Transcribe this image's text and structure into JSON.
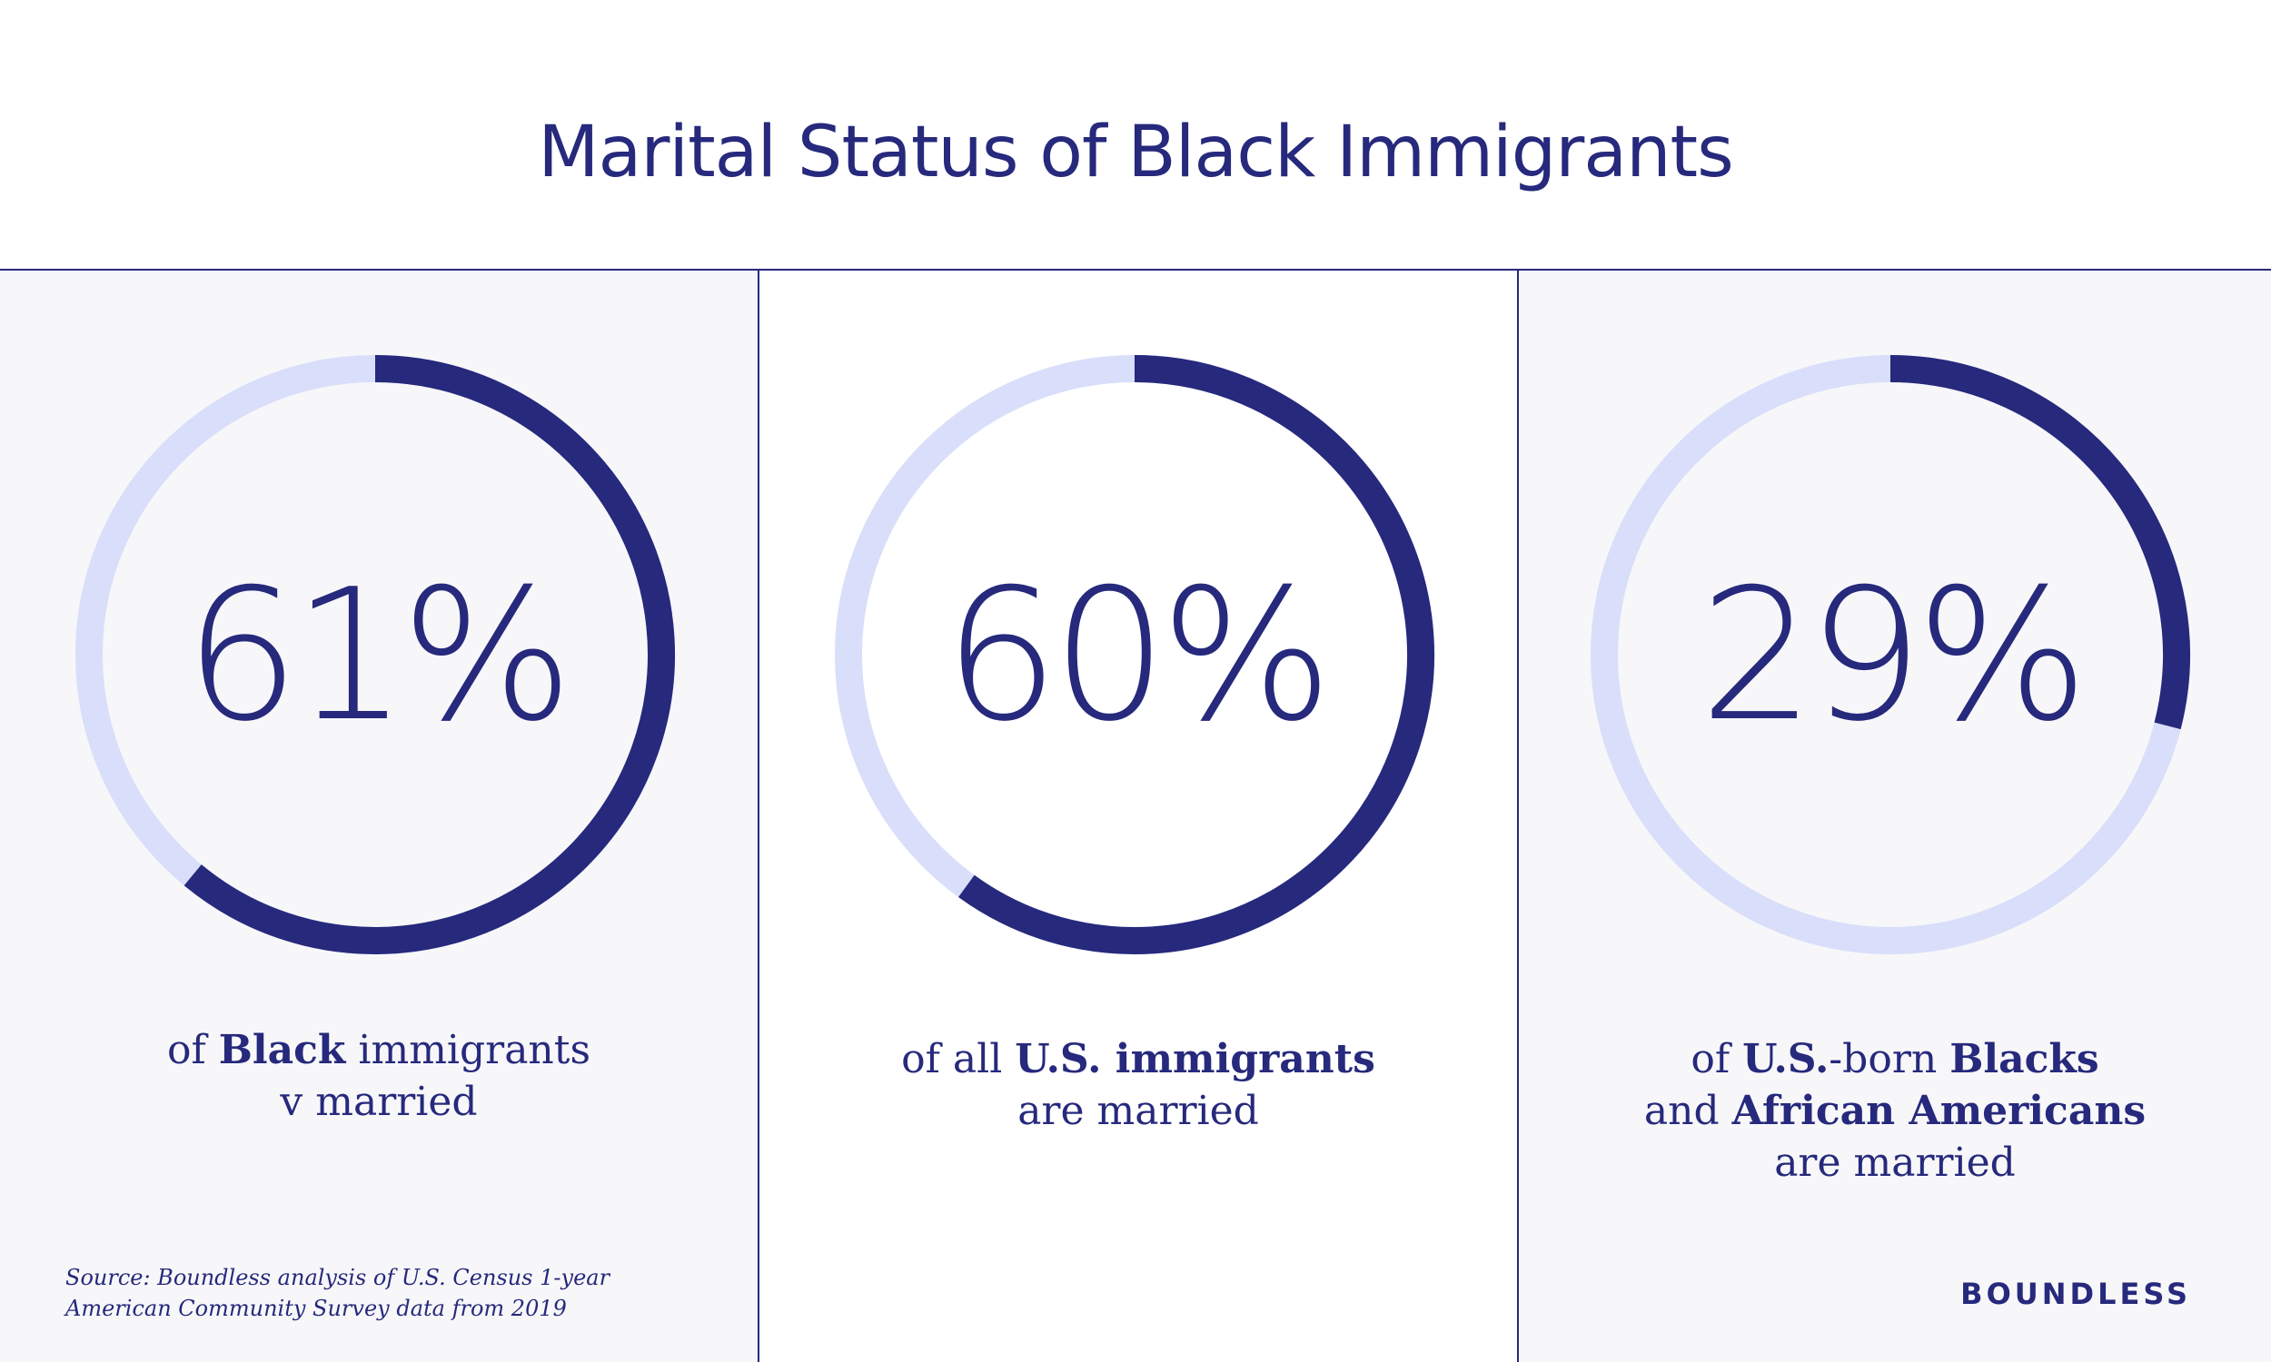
{
  "colors": {
    "accent": "#26297c",
    "track": "#d9defa",
    "panel_bg": "#f7f7f9",
    "white": "#ffffff"
  },
  "header": {
    "title": "Marital Status of Black Immigrants"
  },
  "chart_data": [
    {
      "type": "pie",
      "subtype": "donut",
      "value": 61,
      "value_label": "61%",
      "caption_parts": [
        {
          "text": "of ",
          "bold": false
        },
        {
          "text": "Black",
          "bold": true
        },
        {
          "text": " immigrants",
          "bold": false
        },
        {
          "text": "\nv married",
          "bold": false
        }
      ]
    },
    {
      "type": "pie",
      "subtype": "donut",
      "value": 60,
      "value_label": "60%",
      "caption_parts": [
        {
          "text": "of all ",
          "bold": false
        },
        {
          "text": "U.S. immigrants",
          "bold": true
        },
        {
          "text": "\nare married",
          "bold": false
        }
      ]
    },
    {
      "type": "pie",
      "subtype": "donut",
      "value": 29,
      "value_label": "29%",
      "caption_parts": [
        {
          "text": "of ",
          "bold": false
        },
        {
          "text": "U.S.",
          "bold": true
        },
        {
          "text": "-born ",
          "bold": false
        },
        {
          "text": "Blacks",
          "bold": true
        },
        {
          "text": "\nand ",
          "bold": false
        },
        {
          "text": "African Americans",
          "bold": true
        },
        {
          "text": "\nare married",
          "bold": false
        }
      ]
    }
  ],
  "footer": {
    "source": "Source: Boundless analysis of U.S. Census 1-year American Community Survey data from 2019",
    "brand": "BOUNDLESS"
  }
}
